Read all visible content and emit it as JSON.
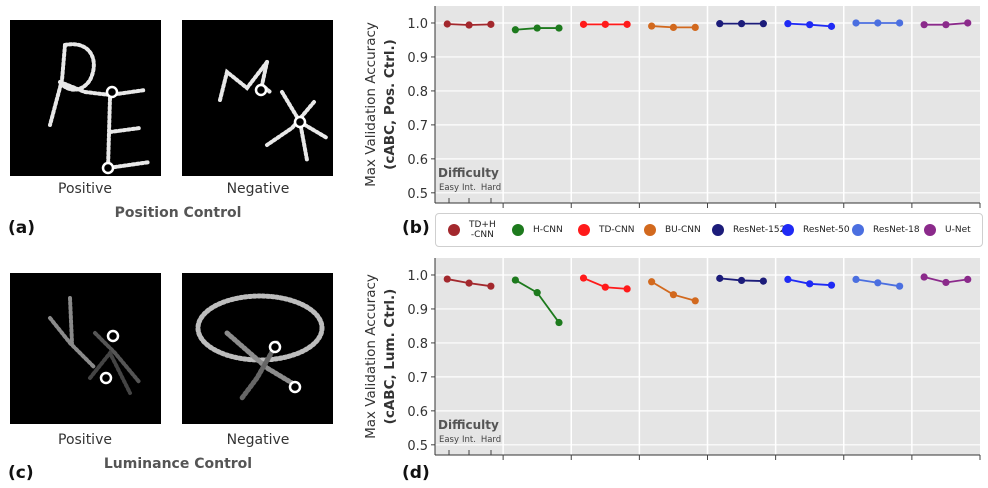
{
  "panels": {
    "a": {
      "label": "(a)",
      "positive_caption": "Positive",
      "negative_caption": "Negative",
      "control_title": "Position Control"
    },
    "b": {
      "label": "(b)"
    },
    "c": {
      "label": "(c)",
      "positive_caption": "Positive",
      "negative_caption": "Negative",
      "control_title": "Luminance Control"
    },
    "d": {
      "label": "(d)"
    }
  },
  "legend": [
    {
      "label": "TD+H\n-CNN",
      "color": "#a3282d"
    },
    {
      "label": "H-CNN",
      "color": "#1d7a1d"
    },
    {
      "label": "TD-CNN",
      "color": "#ff1a1a"
    },
    {
      "label": "BU-CNN",
      "color": "#d2691e"
    },
    {
      "label": "ResNet-152",
      "color": "#1c1c7a"
    },
    {
      "label": "ResNet-50",
      "color": "#1f2af5"
    },
    {
      "label": "ResNet-18",
      "color": "#4b6fe0"
    },
    {
      "label": "U-Net",
      "color": "#8b2a8b"
    }
  ],
  "chart_data": [
    {
      "type": "line",
      "ylabel": "Max Validation Accuracy",
      "ylabel2": "(cABC, Pos. Ctrl.)",
      "ylim": [
        0.47,
        1.05
      ],
      "yticks": [
        "0.5",
        "0.6",
        "0.7",
        "0.8",
        "0.9",
        "1.0"
      ],
      "difficulty_title": "Difficulty",
      "difficulty_levels": [
        "Easy",
        "Int.",
        "Hard"
      ],
      "grid": true,
      "series": [
        {
          "name": "TD+H-CNN",
          "color": "#a3282d",
          "values": [
            0.997,
            0.994,
            0.996
          ]
        },
        {
          "name": "H-CNN",
          "color": "#1d7a1d",
          "values": [
            0.98,
            0.985,
            0.985
          ]
        },
        {
          "name": "TD-CNN",
          "color": "#ff1a1a",
          "values": [
            0.996,
            0.996,
            0.996
          ]
        },
        {
          "name": "BU-CNN",
          "color": "#d2691e",
          "values": [
            0.991,
            0.987,
            0.987
          ]
        },
        {
          "name": "ResNet-152",
          "color": "#1c1c7a",
          "values": [
            0.998,
            0.998,
            0.998
          ]
        },
        {
          "name": "ResNet-50",
          "color": "#1f2af5",
          "values": [
            0.998,
            0.995,
            0.99
          ]
        },
        {
          "name": "ResNet-18",
          "color": "#4b6fe0",
          "values": [
            1.0,
            1.0,
            1.0
          ]
        },
        {
          "name": "U-Net",
          "color": "#8b2a8b",
          "values": [
            0.995,
            0.995,
            1.0
          ]
        }
      ]
    },
    {
      "type": "line",
      "ylabel": "Max Validation Accuracy",
      "ylabel2": "(cABC, Lum. Ctrl.)",
      "ylim": [
        0.47,
        1.05
      ],
      "yticks": [
        "0.5",
        "0.6",
        "0.7",
        "0.8",
        "0.9",
        "1.0"
      ],
      "difficulty_title": "Difficulty",
      "difficulty_levels": [
        "Easy",
        "Int.",
        "Hard"
      ],
      "grid": true,
      "series": [
        {
          "name": "TD+H-CNN",
          "color": "#a3282d",
          "values": [
            0.988,
            0.976,
            0.967
          ]
        },
        {
          "name": "H-CNN",
          "color": "#1d7a1d",
          "values": [
            0.985,
            0.948,
            0.86
          ]
        },
        {
          "name": "TD-CNN",
          "color": "#ff1a1a",
          "values": [
            0.991,
            0.964,
            0.959
          ]
        },
        {
          "name": "BU-CNN",
          "color": "#d2691e",
          "values": [
            0.98,
            0.942,
            0.924
          ]
        },
        {
          "name": "ResNet-152",
          "color": "#1c1c7a",
          "values": [
            0.99,
            0.984,
            0.982
          ]
        },
        {
          "name": "ResNet-50",
          "color": "#1f2af5",
          "values": [
            0.987,
            0.974,
            0.97
          ]
        },
        {
          "name": "ResNet-18",
          "color": "#4b6fe0",
          "values": [
            0.987,
            0.977,
            0.967
          ]
        },
        {
          "name": "U-Net",
          "color": "#8b2a8b",
          "values": [
            0.994,
            0.978,
            0.987
          ]
        }
      ]
    }
  ]
}
